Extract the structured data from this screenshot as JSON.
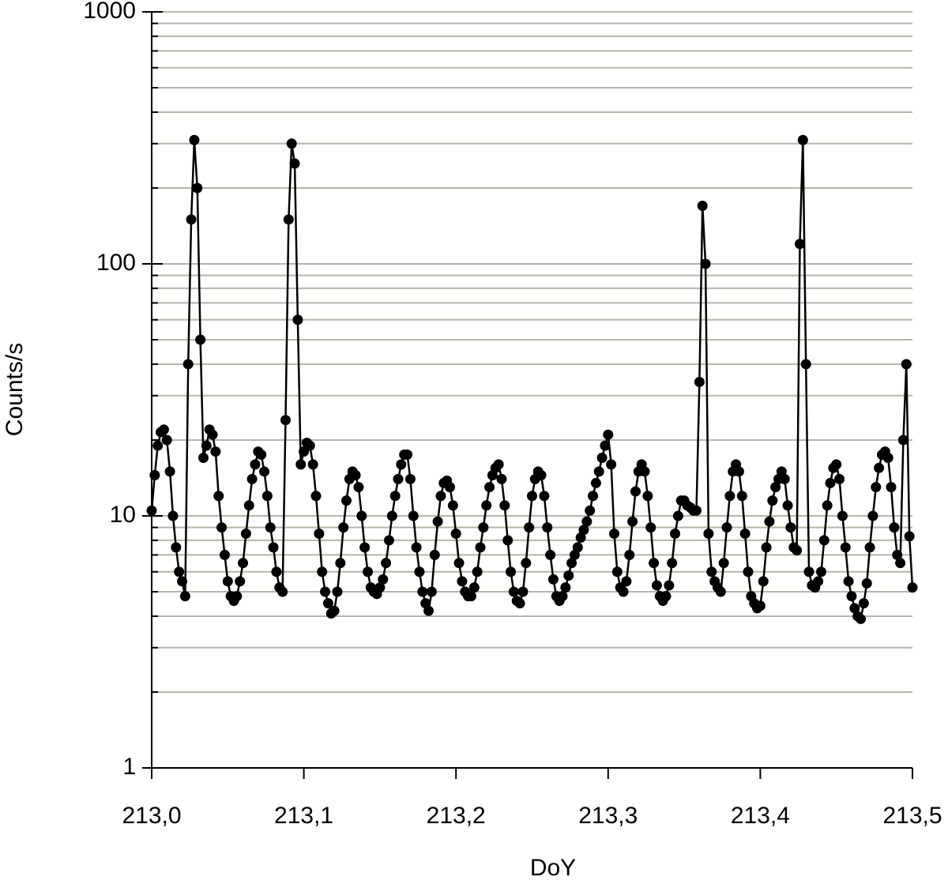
{
  "chart_data": {
    "type": "line",
    "x_label": "DoY",
    "y_label": "Counts/s",
    "log_y": true,
    "grid": true,
    "marker": "circle",
    "xlim": [
      213,
      213.5
    ],
    "xticks": [
      {
        "value": 213,
        "label": "213,0"
      },
      {
        "value": 213.1,
        "label": "213,1"
      },
      {
        "value": 213.2,
        "label": "213,2"
      },
      {
        "value": 213.3,
        "label": "213,3"
      },
      {
        "value": 213.4,
        "label": "213,4"
      },
      {
        "value": 213.5,
        "label": "213,5"
      }
    ],
    "ylim": [
      1,
      1000
    ],
    "yticks": [
      1,
      10,
      100,
      1000
    ],
    "y_minor_ticks": [
      2,
      3,
      4,
      5,
      6,
      7,
      8,
      9,
      20,
      30,
      40,
      50,
      60,
      70,
      80,
      90,
      200,
      300,
      400,
      500,
      600,
      700,
      800,
      900
    ],
    "x": [
      213,
      213.002,
      213.004,
      213.006,
      213.008,
      213.01,
      213.012,
      213.014,
      213.016,
      213.018,
      213.02,
      213.022,
      213.024,
      213.026,
      213.028,
      213.03,
      213.032,
      213.034,
      213.036,
      213.038,
      213.04,
      213.042,
      213.044,
      213.046,
      213.048,
      213.05,
      213.052,
      213.054,
      213.056,
      213.058,
      213.06,
      213.062,
      213.064,
      213.066,
      213.068,
      213.07,
      213.072,
      213.074,
      213.076,
      213.078,
      213.08,
      213.082,
      213.084,
      213.086,
      213.088,
      213.09,
      213.092,
      213.094,
      213.096,
      213.098,
      213.1,
      213.102,
      213.104,
      213.106,
      213.108,
      213.11,
      213.112,
      213.114,
      213.116,
      213.118,
      213.12,
      213.122,
      213.124,
      213.126,
      213.128,
      213.13,
      213.132,
      213.134,
      213.136,
      213.138,
      213.14,
      213.142,
      213.144,
      213.146,
      213.148,
      213.15,
      213.152,
      213.154,
      213.156,
      213.158,
      213.16,
      213.162,
      213.164,
      213.166,
      213.168,
      213.17,
      213.172,
      213.174,
      213.176,
      213.178,
      213.18,
      213.182,
      213.184,
      213.186,
      213.188,
      213.19,
      213.192,
      213.194,
      213.196,
      213.198,
      213.2,
      213.202,
      213.204,
      213.206,
      213.208,
      213.21,
      213.212,
      213.214,
      213.216,
      213.218,
      213.22,
      213.222,
      213.224,
      213.226,
      213.228,
      213.23,
      213.232,
      213.234,
      213.236,
      213.238,
      213.24,
      213.242,
      213.244,
      213.246,
      213.248,
      213.25,
      213.252,
      213.254,
      213.256,
      213.258,
      213.26,
      213.262,
      213.264,
      213.266,
      213.268,
      213.27,
      213.272,
      213.274,
      213.276,
      213.278,
      213.28,
      213.282,
      213.284,
      213.286,
      213.288,
      213.29,
      213.292,
      213.294,
      213.296,
      213.298,
      213.3,
      213.302,
      213.304,
      213.306,
      213.308,
      213.31,
      213.312,
      213.314,
      213.316,
      213.318,
      213.32,
      213.322,
      213.324,
      213.326,
      213.328,
      213.33,
      213.332,
      213.334,
      213.336,
      213.338,
      213.34,
      213.342,
      213.344,
      213.346,
      213.348,
      213.35,
      213.352,
      213.354,
      213.356,
      213.358,
      213.36,
      213.362,
      213.364,
      213.366,
      213.368,
      213.37,
      213.372,
      213.374,
      213.376,
      213.378,
      213.38,
      213.382,
      213.384,
      213.386,
      213.388,
      213.39,
      213.392,
      213.394,
      213.396,
      213.398,
      213.4,
      213.402,
      213.404,
      213.406,
      213.408,
      213.41,
      213.412,
      213.414,
      213.416,
      213.418,
      213.42,
      213.422,
      213.424,
      213.426,
      213.428,
      213.43,
      213.432,
      213.434,
      213.436,
      213.438,
      213.44,
      213.442,
      213.444,
      213.446,
      213.448,
      213.45,
      213.452,
      213.454,
      213.456,
      213.458,
      213.46,
      213.462,
      213.464,
      213.466,
      213.468,
      213.47,
      213.472,
      213.474,
      213.476,
      213.478,
      213.48,
      213.482,
      213.484,
      213.486,
      213.488,
      213.49,
      213.492,
      213.494,
      213.496,
      213.498,
      213.5
    ],
    "color": "#000000",
    "values": [
      10.5,
      14.5,
      19,
      21.5,
      22,
      20,
      15,
      10,
      7.5,
      6,
      5.5,
      4.8,
      40,
      150,
      310,
      200,
      50,
      17,
      19,
      22,
      21,
      18,
      12,
      9,
      7,
      5.5,
      4.8,
      4.6,
      4.8,
      5.5,
      6.5,
      8.5,
      11,
      14,
      16,
      18,
      17.5,
      15,
      12,
      9,
      7.5,
      6,
      5.2,
      5,
      24,
      150,
      300,
      250,
      60,
      16,
      18,
      19.5,
      19,
      16,
      12,
      8.5,
      6,
      5,
      4.5,
      4.1,
      4.2,
      5,
      6.5,
      9,
      11.5,
      14,
      15,
      14.5,
      13,
      10,
      7.5,
      6,
      5.2,
      5,
      4.9,
      5.2,
      5.6,
      6.5,
      8,
      10,
      12,
      14,
      16,
      17.5,
      17.5,
      14,
      10,
      7.5,
      6,
      5,
      4.5,
      4.2,
      5,
      7,
      9.5,
      12,
      13.5,
      13.8,
      13,
      11,
      8.5,
      6.5,
      5.5,
      5,
      4.8,
      4.8,
      5.2,
      6,
      7.5,
      9,
      11,
      13,
      14.5,
      15.5,
      16,
      14,
      11,
      8,
      6,
      5,
      4.6,
      4.5,
      5,
      6.5,
      9,
      12,
      14,
      15,
      14.5,
      12,
      9,
      7,
      5.6,
      4.8,
      4.6,
      4.8,
      5.2,
      5.8,
      6.5,
      7,
      7.5,
      8.2,
      8.8,
      9.5,
      10.5,
      12,
      13.5,
      15,
      17,
      19,
      21,
      16,
      8.5,
      6,
      5.2,
      5,
      5.5,
      7,
      9.5,
      12.5,
      15,
      16,
      15,
      12,
      9,
      6.5,
      5.3,
      4.8,
      4.6,
      4.8,
      5.3,
      6.5,
      8.5,
      10,
      11.5,
      11.5,
      11,
      10.8,
      10.5,
      10.5,
      34,
      170,
      100,
      8.5,
      6,
      5.5,
      5.2,
      5,
      6.5,
      9,
      12,
      15,
      16,
      15,
      12,
      8.5,
      6,
      4.8,
      4.5,
      4.3,
      4.4,
      5.5,
      7.5,
      9.5,
      11.5,
      13,
      14,
      15,
      14,
      11,
      9,
      7.5,
      7.3,
      120,
      310,
      40,
      6,
      5.3,
      5.2,
      5.5,
      6,
      8,
      11,
      13.5,
      15.5,
      16,
      14,
      10,
      7.5,
      5.5,
      4.8,
      4.3,
      4,
      3.9,
      4.5,
      5.4,
      7.5,
      10,
      13,
      15.5,
      17.5,
      18,
      17,
      13,
      9,
      7,
      6.5,
      20,
      40,
      8.3,
      5.2
    ]
  }
}
